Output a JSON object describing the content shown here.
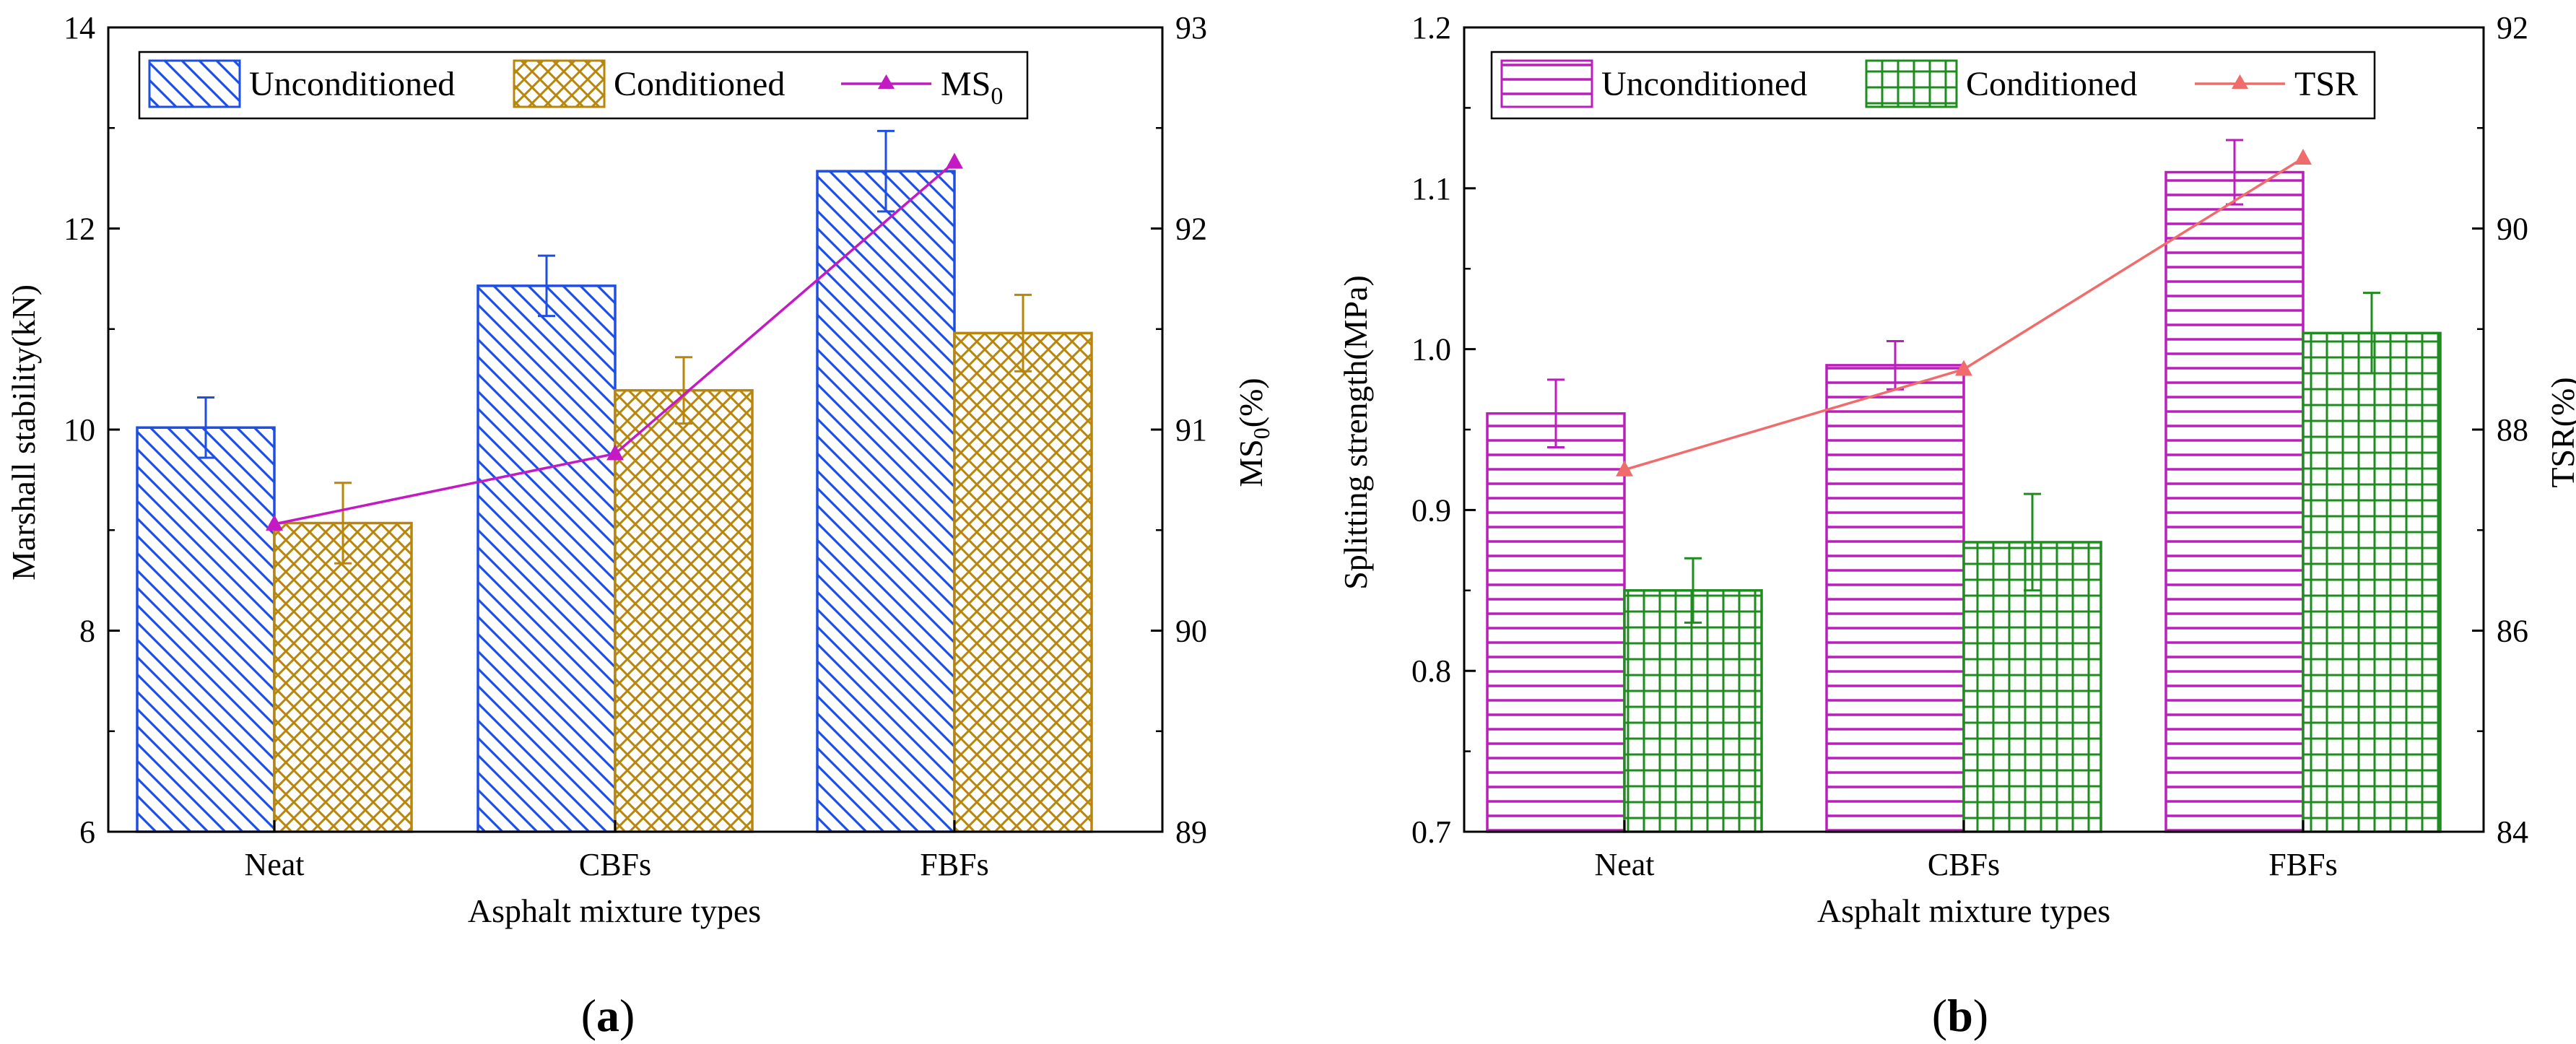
{
  "charts": [
    {
      "panel_label": "a",
      "legend": {
        "unconditioned": "Unconditioned",
        "conditioned": "Conditioned",
        "line": "MS",
        "line_sub": "0"
      }
    },
    {
      "panel_label": "b",
      "legend": {
        "unconditioned": "Unconditioned",
        "conditioned": "Conditioned",
        "line": "TSR",
        "line_sub": ""
      }
    }
  ],
  "chart_data": [
    {
      "type": "bar",
      "categories": [
        "Neat",
        "CBFs",
        "FBFs"
      ],
      "xlabel": "Asphalt mixture types",
      "ylabel": "Marshall stability(kN)",
      "y2label": "MS",
      "y2label_sub": "0",
      "y2label_suffix": "(%)",
      "ylim": [
        6,
        14
      ],
      "yticks": [
        6,
        8,
        10,
        12,
        14
      ],
      "y2lim": [
        89,
        93
      ],
      "y2ticks": [
        89,
        90,
        91,
        92,
        93
      ],
      "series": [
        {
          "name": "Unconditioned",
          "values": [
            10.02,
            11.43,
            12.57
          ],
          "errors": [
            0.3,
            0.3,
            0.4
          ],
          "color": "#1f4fe0"
        },
        {
          "name": "Conditioned",
          "values": [
            9.07,
            10.39,
            10.96
          ],
          "errors": [
            0.4,
            0.33,
            0.38
          ],
          "color": "#b8860b"
        }
      ],
      "line_series": {
        "name": "MS0",
        "values": [
          90.53,
          90.88,
          92.33
        ],
        "color": "#c41ac4"
      },
      "legend_position": "top"
    },
    {
      "type": "bar",
      "categories": [
        "Neat",
        "CBFs",
        "FBFs"
      ],
      "xlabel": "Asphalt mixture types",
      "ylabel": "Splitting strength(MPa)",
      "y2label": "TSR",
      "y2label_sub": "",
      "y2label_suffix": "(%)",
      "ylim": [
        0.7,
        1.2
      ],
      "yticks": [
        0.7,
        0.8,
        0.9,
        1.0,
        1.1,
        1.2
      ],
      "y2lim": [
        84,
        92
      ],
      "y2ticks": [
        84,
        86,
        88,
        90,
        92
      ],
      "series": [
        {
          "name": "Unconditioned",
          "values": [
            0.96,
            0.99,
            1.11
          ],
          "errors": [
            0.021,
            0.015,
            0.02
          ],
          "color": "#bb1fbb"
        },
        {
          "name": "Conditioned",
          "values": [
            0.85,
            0.88,
            1.01
          ],
          "errors": [
            0.02,
            0.03,
            0.025
          ],
          "color": "#1e8c1e"
        }
      ],
      "line_series": {
        "name": "TSR",
        "values": [
          87.6,
          88.6,
          90.7
        ],
        "color": "#f06c6c"
      },
      "legend_position": "top"
    }
  ]
}
